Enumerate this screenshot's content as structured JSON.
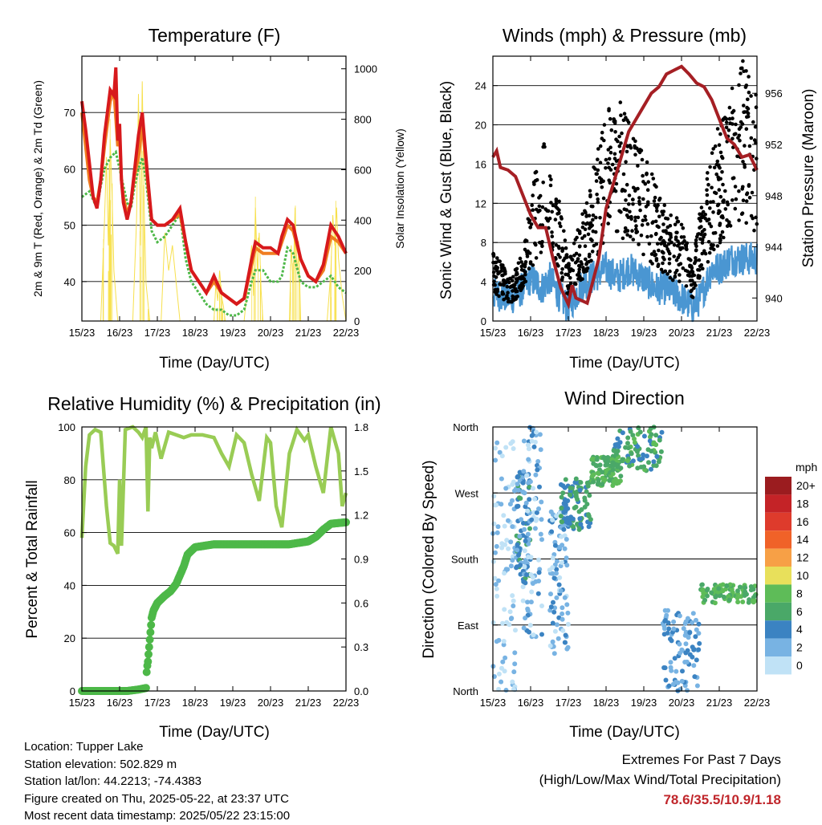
{
  "colors": {
    "t2m": "#d7191c",
    "t9m": "#f07d20",
    "td": "#4db848",
    "solar": "#f7e04d",
    "wind": "#4a96d2",
    "gust": "#000000",
    "pressure": "#a51f24",
    "rh": "#99cc55",
    "precip": "#4db848",
    "extreme": "#c0262b"
  },
  "footer": {
    "location": "Location: Tupper Lake",
    "elevation": "Station elevation: 502.829 m",
    "latlon": "Station lat/lon: 44.2213; -74.4383",
    "created": "Figure created on Thu, 2025-05-22, at 23:37 UTC",
    "recent": "Most recent data timestamp: 2025/05/22 23:15:00"
  },
  "extremes": {
    "title": "Extremes For Past 7 Days",
    "subtitle": "(High/Low/Max Wind/Total Precipitation)",
    "value": "78.6/35.5/10.9/1.18"
  },
  "chart_data": [
    {
      "id": "temperature",
      "type": "line",
      "title": "Temperature (F)",
      "xlabel": "Time (Day/UTC)",
      "ylabel": "2m & 9m T (Red, Orange) & 2m Td (Green)",
      "y2label": "Solar Insolation (Yellow)",
      "x_ticks": [
        "15/23",
        "16/23",
        "17/23",
        "18/23",
        "19/23",
        "20/23",
        "21/23",
        "22/23"
      ],
      "xlim": [
        0,
        7
      ],
      "ylim": [
        33,
        80
      ],
      "y_ticks": [
        40,
        50,
        60,
        70
      ],
      "y2lim": [
        0,
        1050
      ],
      "y2_ticks": [
        0,
        200,
        400,
        600,
        800,
        1000
      ],
      "series": [
        {
          "name": "2m T",
          "x": [
            0,
            0.1,
            0.2,
            0.3,
            0.4,
            0.5,
            0.6,
            0.75,
            0.85,
            0.9,
            0.95,
            1.0,
            1.05,
            1.1,
            1.2,
            1.3,
            1.4,
            1.5,
            1.6,
            1.7,
            1.75,
            1.85,
            2.0,
            2.2,
            2.4,
            2.6,
            2.75,
            2.9,
            3.1,
            3.3,
            3.5,
            3.7,
            3.9,
            4.1,
            4.3,
            4.5,
            4.6,
            4.8,
            5.0,
            5.2,
            5.3,
            5.45,
            5.6,
            5.8,
            6.0,
            6.2,
            6.4,
            6.6,
            6.8,
            7.0
          ],
          "y": [
            72,
            67,
            61,
            55,
            53,
            58,
            66,
            74,
            73,
            78,
            65,
            68,
            58,
            54,
            51,
            54,
            60,
            66,
            70,
            62,
            58,
            51,
            50,
            50,
            51,
            53,
            47,
            42,
            40,
            38,
            41,
            38,
            37,
            36,
            37,
            44,
            47,
            46,
            46,
            45,
            48,
            51,
            50,
            44,
            41,
            40,
            43,
            50,
            48,
            45
          ]
        },
        {
          "name": "9m T",
          "x": [
            0,
            0.1,
            0.2,
            0.3,
            0.4,
            0.5,
            0.6,
            0.75,
            0.85,
            0.95,
            1.0,
            1.05,
            1.1,
            1.2,
            1.3,
            1.4,
            1.5,
            1.6,
            1.7,
            1.75,
            1.85,
            2.0,
            2.2,
            2.4,
            2.6,
            2.75,
            2.9,
            3.1,
            3.3,
            3.5,
            3.7,
            3.9,
            4.1,
            4.3,
            4.5,
            4.6,
            4.8,
            5.0,
            5.2,
            5.3,
            5.45,
            5.6,
            5.8,
            6.0,
            6.2,
            6.4,
            6.6,
            6.8,
            7.0
          ],
          "y": [
            70,
            64,
            58,
            55,
            54,
            58,
            64,
            72,
            74,
            64,
            66,
            58,
            55,
            52,
            54,
            59,
            62,
            68,
            61,
            57,
            51,
            50,
            50,
            51,
            52,
            47,
            42,
            40,
            38,
            40,
            38,
            37,
            36,
            37,
            43,
            46,
            45,
            45,
            45,
            47,
            50,
            49,
            44,
            41,
            40,
            42,
            48,
            47,
            45
          ]
        },
        {
          "name": "2m Td",
          "x": [
            0,
            0.2,
            0.4,
            0.5,
            0.6,
            0.75,
            0.9,
            1.0,
            1.1,
            1.2,
            1.3,
            1.4,
            1.5,
            1.6,
            1.7,
            1.75,
            1.85,
            2.0,
            2.2,
            2.4,
            2.6,
            2.75,
            2.9,
            3.1,
            3.3,
            3.5,
            3.7,
            3.9,
            4.1,
            4.3,
            4.5,
            4.6,
            4.8,
            5.0,
            5.2,
            5.3,
            5.45,
            5.6,
            5.8,
            6.0,
            6.2,
            6.4,
            6.6,
            6.8,
            7.0
          ],
          "y": [
            55,
            56,
            53,
            57,
            60,
            62,
            63,
            60,
            57,
            54,
            53,
            57,
            60,
            62,
            58,
            55,
            49,
            47,
            48,
            50,
            52,
            44,
            40,
            38,
            36,
            35,
            35,
            34,
            34,
            35,
            40,
            42,
            42,
            40,
            40,
            41,
            46,
            45,
            40,
            39,
            39,
            40,
            41,
            39,
            38
          ]
        },
        {
          "name": "Solar",
          "axis": "y2",
          "x": [
            0,
            0.5,
            0.6,
            0.65,
            0.7,
            0.75,
            0.8,
            0.85,
            0.95,
            1.05,
            1.15,
            1.25,
            1.35,
            1.45,
            1.5,
            1.55,
            1.6,
            1.65,
            1.7,
            1.8,
            1.9,
            2.1,
            2.2,
            2.3,
            2.4,
            2.5,
            2.6,
            3.5,
            3.55,
            3.6,
            3.65,
            3.7,
            3.75,
            3.8,
            4.3,
            4.5,
            4.55,
            4.6,
            4.65,
            4.7,
            4.75,
            4.8,
            5.5,
            5.55,
            5.6,
            5.65,
            5.7,
            5.75,
            5.8,
            6.5,
            6.6,
            6.65,
            6.7,
            6.75,
            6.8,
            6.9,
            7.0
          ],
          "y": [
            0,
            0,
            400,
            650,
            300,
            720,
            500,
            200,
            0,
            0,
            0,
            0,
            0,
            400,
            900,
            300,
            950,
            450,
            150,
            0,
            0,
            0,
            350,
            200,
            300,
            150,
            0,
            0,
            150,
            80,
            200,
            100,
            60,
            0,
            0,
            300,
            100,
            450,
            200,
            350,
            120,
            0,
            0,
            300,
            150,
            450,
            200,
            280,
            0,
            0,
            200,
            420,
            300,
            450,
            250,
            100,
            0
          ]
        }
      ]
    },
    {
      "id": "winds",
      "type": "scatter",
      "title": "Winds (mph) & Pressure (mb)",
      "xlabel": "Time (Day/UTC)",
      "ylabel": "Sonic Wind & Gust (Blue, Black)",
      "y2label": "Station Pressure (Maroon)",
      "x_ticks": [
        "15/23",
        "16/23",
        "17/23",
        "18/23",
        "19/23",
        "20/23",
        "21/23",
        "22/23"
      ],
      "xlim": [
        0,
        7
      ],
      "ylim": [
        0,
        27
      ],
      "y_ticks": [
        0,
        4,
        8,
        12,
        16,
        20,
        24
      ],
      "y2lim": [
        938.2,
        958.9
      ],
      "y2_ticks": [
        940,
        944,
        948,
        952,
        956
      ],
      "series": [
        {
          "name": "Wind",
          "x": [
            0,
            0.5,
            0.8,
            1.0,
            1.3,
            1.5,
            1.8,
            2.0,
            2.3,
            2.6,
            3.0,
            3.3,
            3.6,
            4.0,
            4.3,
            4.6,
            5.0,
            5.3,
            5.5,
            5.8,
            6.0,
            6.3,
            6.6,
            7.0
          ],
          "y": [
            2.5,
            2,
            3,
            4,
            3,
            4,
            2,
            1,
            3,
            4,
            5,
            4,
            5,
            4,
            3,
            3,
            2,
            1,
            2,
            5,
            5,
            6,
            6,
            6
          ]
        },
        {
          "name": "Gust",
          "x": [
            0,
            0.5,
            0.8,
            1.0,
            1.3,
            1.5,
            1.8,
            2.0,
            2.3,
            2.6,
            3.0,
            3.3,
            3.6,
            4.0,
            4.3,
            4.6,
            5.0,
            5.3,
            5.5,
            5.8,
            6.0,
            6.3,
            6.6,
            7.0
          ],
          "y": [
            5,
            3,
            5,
            9,
            13,
            11,
            8,
            4,
            7,
            10,
            15,
            16,
            14,
            12,
            10,
            8,
            7,
            4,
            8,
            12,
            14,
            16,
            19,
            16
          ]
        },
        {
          "name": "Pressure",
          "axis": "y2",
          "x": [
            0,
            0.1,
            0.2,
            0.4,
            0.6,
            0.8,
            1.0,
            1.2,
            1.4,
            1.6,
            1.8,
            2.0,
            2.1,
            2.2,
            2.5,
            2.8,
            3.0,
            3.2,
            3.4,
            3.6,
            3.8,
            4.0,
            4.2,
            4.4,
            4.6,
            4.8,
            5.0,
            5.2,
            5.4,
            5.6,
            5.8,
            6.0,
            6.2,
            6.4,
            6.6,
            6.8,
            7.0
          ],
          "y": [
            951,
            951.5,
            950.2,
            950,
            949.5,
            948,
            946.5,
            945.5,
            945.5,
            943,
            940.8,
            939.5,
            941,
            940,
            939.6,
            943,
            947,
            949,
            951,
            953,
            954,
            955,
            956,
            956.5,
            957.5,
            957.8,
            958.1,
            957.5,
            956.8,
            956.5,
            955.5,
            954,
            952.5,
            952,
            951,
            951.2,
            950
          ]
        }
      ]
    },
    {
      "id": "humidity",
      "type": "line",
      "title": "Relative Humidity (%) & Precipitation (in)",
      "xlabel": "Time (Day/UTC)",
      "ylabel": "Percent & Total Rainfall",
      "x_ticks": [
        "15/23",
        "16/23",
        "17/23",
        "18/23",
        "19/23",
        "20/23",
        "21/23",
        "22/23"
      ],
      "xlim": [
        0,
        7
      ],
      "ylim": [
        0,
        100
      ],
      "y_ticks": [
        0,
        20,
        40,
        60,
        80,
        100
      ],
      "y2lim": [
        0,
        1.8
      ],
      "y2_ticks": [
        "0.0",
        "0.3",
        "0.6",
        "0.9",
        "1.2",
        "1.5",
        "1.8"
      ],
      "series": [
        {
          "name": "RH",
          "x": [
            0,
            0.1,
            0.2,
            0.35,
            0.5,
            0.65,
            0.75,
            0.85,
            0.95,
            1.0,
            1.05,
            1.15,
            1.35,
            1.5,
            1.6,
            1.7,
            1.75,
            1.8,
            1.85,
            1.95,
            2.1,
            2.3,
            2.5,
            2.7,
            2.9,
            3.2,
            3.5,
            3.7,
            3.9,
            4.1,
            4.3,
            4.5,
            4.7,
            4.9,
            5.0,
            5.15,
            5.3,
            5.5,
            5.7,
            5.9,
            6.0,
            6.2,
            6.4,
            6.6,
            6.8,
            6.9,
            7.0
          ],
          "y": [
            58,
            85,
            97,
            99,
            98,
            70,
            56,
            55,
            52,
            80,
            55,
            99,
            100,
            98,
            96,
            100,
            68,
            96,
            92,
            98,
            88,
            98,
            97,
            96,
            97,
            97,
            96,
            90,
            85,
            97,
            94,
            82,
            72,
            96,
            94,
            70,
            62,
            90,
            99,
            95,
            97,
            85,
            75,
            100,
            90,
            70,
            75
          ]
        },
        {
          "name": "Precip",
          "axis": "y2",
          "x": [
            0,
            1.2,
            1.5,
            1.7,
            1.72,
            1.75,
            1.8,
            1.85,
            1.9,
            2.0,
            2.2,
            2.35,
            2.5,
            2.7,
            2.8,
            3.0,
            3.5,
            4.0,
            4.5,
            5.0,
            5.5,
            6.0,
            6.2,
            6.4,
            6.6,
            7.0
          ],
          "y": [
            0,
            0,
            0.01,
            0.02,
            0.15,
            0.2,
            0.35,
            0.5,
            0.55,
            0.6,
            0.65,
            0.68,
            0.73,
            0.85,
            0.93,
            0.98,
            1.0,
            1.0,
            1.0,
            1.0,
            1.0,
            1.02,
            1.05,
            1.1,
            1.14,
            1.15
          ]
        }
      ]
    },
    {
      "id": "direction",
      "type": "scatter",
      "title": "Wind Direction",
      "xlabel": "Time (Day/UTC)",
      "ylabel": "Direction (Colored By Speed)",
      "x_ticks": [
        "15/23",
        "16/23",
        "17/23",
        "18/23",
        "19/23",
        "20/23",
        "21/23",
        "22/23"
      ],
      "xlim": [
        0,
        7
      ],
      "ylim": [
        0,
        360
      ],
      "y_tick_labels": [
        "North",
        "East",
        "South",
        "West",
        "North"
      ],
      "y_tick_values": [
        0,
        90,
        180,
        270,
        360
      ],
      "legend_unit": "mph",
      "legend_labels": [
        "20+",
        "18",
        "16",
        "14",
        "12",
        "10",
        "8",
        "6",
        "4",
        "2",
        "0"
      ],
      "legend_colors": [
        "#9b1c1f",
        "#c42327",
        "#de3b2c",
        "#f06228",
        "#f7a046",
        "#e8e05b",
        "#5ebc58",
        "#4aa868",
        "#3b83c2",
        "#78b3e3",
        "#c0e2f6"
      ],
      "clusters": [
        {
          "x": [
            0.0,
            0.6
          ],
          "y": [
            0,
            340
          ],
          "speed": 1
        },
        {
          "x": [
            0.6,
            1.0
          ],
          "y": [
            150,
            300
          ],
          "speed": 4
        },
        {
          "x": [
            0.8,
            1.3
          ],
          "y": [
            60,
            360
          ],
          "speed": 2
        },
        {
          "x": [
            1.5,
            2.0
          ],
          "y": [
            50,
            250
          ],
          "speed": 2
        },
        {
          "x": [
            1.8,
            2.6
          ],
          "y": [
            220,
            290
          ],
          "speed": 5
        },
        {
          "x": [
            2.6,
            3.4
          ],
          "y": [
            280,
            320
          ],
          "speed": 7
        },
        {
          "x": [
            3.2,
            4.5
          ],
          "y": [
            300,
            360
          ],
          "speed": 6
        },
        {
          "x": [
            4.5,
            5.5
          ],
          "y": [
            0,
            110
          ],
          "speed": 3
        },
        {
          "x": [
            5.5,
            7.0
          ],
          "y": [
            120,
            145
          ],
          "speed": 7
        }
      ]
    }
  ]
}
